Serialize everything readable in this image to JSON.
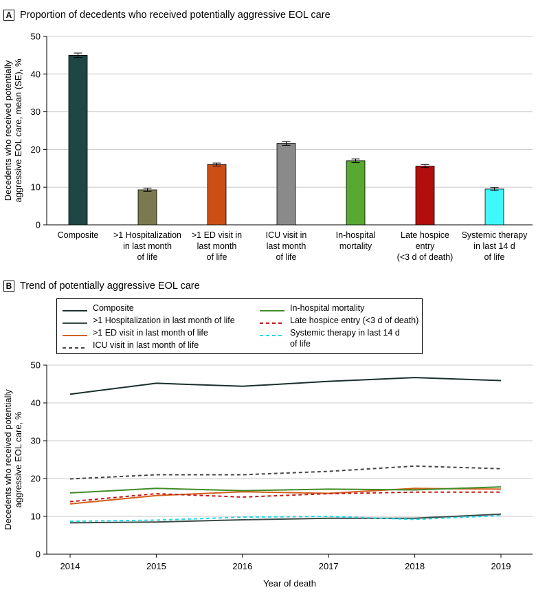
{
  "panel_a": {
    "letter": "A",
    "title": "Proportion of decedents who received potentially aggressive EOL care"
  },
  "panel_b": {
    "letter": "B",
    "title": "Trend of potentially aggressive EOL care"
  },
  "chart_data": [
    {
      "type": "bar",
      "title": "Proportion of decedents who received potentially aggressive EOL care",
      "xlabel": "",
      "ylabel_lines": [
        "Decedents who received potentially",
        "aggressive EOL care, mean (SE), %"
      ],
      "ylim": [
        0,
        50
      ],
      "yticks": [
        0,
        10,
        20,
        30,
        40,
        50
      ],
      "grid": true,
      "categories": [
        [
          "Composite"
        ],
        [
          ">1 Hospitalization",
          "in last month",
          "of life"
        ],
        [
          ">1 ED visit in",
          "last month",
          "of life"
        ],
        [
          "ICU visit in",
          "last month",
          "of life"
        ],
        [
          "In-hospital",
          "mortality"
        ],
        [
          "Late hospice",
          "entry",
          "(<3 d of death)"
        ],
        [
          "Systemic therapy",
          "in last 14 d",
          "of life"
        ]
      ],
      "values": [
        45.0,
        9.3,
        16.0,
        21.6,
        17.0,
        15.6,
        9.5
      ],
      "se": [
        0.6,
        0.4,
        0.4,
        0.5,
        0.5,
        0.4,
        0.4
      ],
      "colors": [
        "#1d4645",
        "#7a7a4e",
        "#cc4e14",
        "#8a8a8a",
        "#58a831",
        "#b30d0d",
        "#3ff8ff"
      ]
    },
    {
      "type": "line",
      "title": "Trend of potentially aggressive EOL care",
      "xlabel": "Year of death",
      "ylabel_lines": [
        "Decedents who received potentially",
        "aggressive EOL care, %"
      ],
      "ylim": [
        0,
        50
      ],
      "yticks": [
        0,
        10,
        20,
        30,
        40,
        50
      ],
      "grid": true,
      "x": [
        2014,
        2015,
        2016,
        2017,
        2018,
        2019
      ],
      "series": [
        {
          "name": "Composite",
          "color": "#1a2e2d",
          "dash": "solid",
          "values": [
            42.3,
            45.2,
            44.4,
            45.7,
            46.7,
            45.9
          ]
        },
        {
          "name": ">1 Hospitalization in last month of life",
          "color": "#3c4a47",
          "dash": "solid",
          "values": [
            8.3,
            8.5,
            9.1,
            9.5,
            9.5,
            10.6
          ]
        },
        {
          "name": ">1 ED visit in last month of life",
          "color": "#d4601c",
          "dash": "solid",
          "values": [
            13.3,
            15.5,
            16.5,
            16.1,
            17.4,
            17.2
          ]
        },
        {
          "name": "ICU visit in last month of life",
          "color": "#444444",
          "dash": "dashed",
          "values": [
            19.9,
            21.0,
            21.0,
            21.9,
            23.3,
            22.6
          ]
        },
        {
          "name": "In-hospital mortality",
          "color": "#3e8c26",
          "dash": "solid",
          "values": [
            16.2,
            17.4,
            16.8,
            17.2,
            17.0,
            17.8
          ]
        },
        {
          "name": "Late hospice entry (<3 d of death)",
          "color": "#c01a1a",
          "dash": "dashed",
          "values": [
            13.9,
            16.0,
            15.1,
            16.0,
            16.4,
            16.4
          ]
        },
        {
          "name": "Systemic therapy in last 14 d of life",
          "color": "#22d8e8",
          "dash": "dashed",
          "values": [
            8.7,
            9.0,
            9.8,
            10.0,
            9.2,
            10.2
          ]
        }
      ],
      "legend_lines": [
        [
          "Composite"
        ],
        [
          ">1 Hospitalization in last month of life"
        ],
        [
          ">1 ED visit in last month of life"
        ],
        [
          "ICU visit in last month of life"
        ],
        [
          "In-hospital mortality"
        ],
        [
          "Late hospice entry (<3 d of death)"
        ],
        [
          "Systemic therapy in last 14 d",
          "of life"
        ]
      ]
    }
  ]
}
